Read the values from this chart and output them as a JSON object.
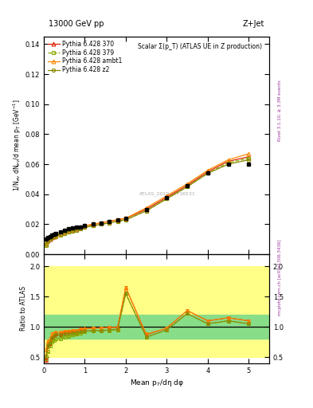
{
  "title_top": "13000 GeV pp",
  "title_right": "Z+Jet",
  "plot_title": "Scalar Σ(p_T) (ATLAS UE in Z production)",
  "xlabel": "Mean p$_T$/dη dφ",
  "ylabel_main": "1/N$_{ev}$ dN$_{ev}$/d mean p$_T$ [GeV$^{-1}$]",
  "ylabel_ratio": "Ratio to ATLAS",
  "right_label_main": "Rivet 3.1.10, ≥ 3.3M events",
  "right_label_ratio": "mcplots.cern.ch [arXiv:1306.3436]",
  "watermark": "ATLAS_2019_I1736531",
  "data_x": [
    0.05,
    0.1,
    0.15,
    0.2,
    0.25,
    0.3,
    0.4,
    0.5,
    0.6,
    0.7,
    0.8,
    0.9,
    1.0,
    1.2,
    1.4,
    1.6,
    1.8,
    2.0,
    2.5,
    3.0,
    3.5,
    4.0,
    4.5,
    5.0
  ],
  "data_y": [
    0.01,
    0.011,
    0.012,
    0.013,
    0.0135,
    0.014,
    0.015,
    0.016,
    0.017,
    0.0175,
    0.018,
    0.018,
    0.019,
    0.02,
    0.021,
    0.022,
    0.023,
    0.024,
    0.03,
    0.038,
    0.046,
    0.054,
    0.06,
    0.06
  ],
  "py370_y": [
    0.007,
    0.009,
    0.01,
    0.011,
    0.012,
    0.013,
    0.014,
    0.015,
    0.016,
    0.0165,
    0.017,
    0.018,
    0.019,
    0.02,
    0.021,
    0.022,
    0.023,
    0.024,
    0.03,
    0.038,
    0.046,
    0.055,
    0.062,
    0.065
  ],
  "py379_y": [
    0.006,
    0.009,
    0.01,
    0.011,
    0.0115,
    0.012,
    0.013,
    0.014,
    0.015,
    0.0155,
    0.016,
    0.017,
    0.018,
    0.019,
    0.02,
    0.021,
    0.022,
    0.023,
    0.029,
    0.037,
    0.045,
    0.054,
    0.061,
    0.064
  ],
  "pyambt1_y": [
    0.008,
    0.01,
    0.011,
    0.012,
    0.0125,
    0.013,
    0.014,
    0.015,
    0.016,
    0.0165,
    0.017,
    0.018,
    0.019,
    0.02,
    0.021,
    0.022,
    0.023,
    0.024,
    0.031,
    0.039,
    0.047,
    0.056,
    0.063,
    0.067
  ],
  "pyz2_y": [
    0.007,
    0.009,
    0.01,
    0.011,
    0.012,
    0.013,
    0.0135,
    0.014,
    0.015,
    0.0155,
    0.016,
    0.017,
    0.018,
    0.019,
    0.02,
    0.021,
    0.022,
    0.023,
    0.029,
    0.037,
    0.045,
    0.054,
    0.06,
    0.063
  ],
  "ratio_x": [
    0.05,
    0.1,
    0.15,
    0.2,
    0.25,
    0.3,
    0.4,
    0.5,
    0.6,
    0.7,
    0.8,
    0.9,
    1.0,
    1.2,
    1.4,
    1.6,
    1.8,
    2.0,
    2.5,
    3.0,
    3.5,
    4.0,
    4.5,
    5.0
  ],
  "ratio370": [
    0.45,
    0.68,
    0.73,
    0.82,
    0.86,
    0.88,
    0.88,
    0.91,
    0.92,
    0.93,
    0.94,
    0.95,
    0.97,
    0.98,
    0.98,
    0.99,
    0.99,
    1.65,
    0.87,
    0.98,
    1.27,
    1.1,
    1.15,
    1.1
  ],
  "ratio379": [
    0.48,
    0.6,
    0.68,
    0.75,
    0.78,
    0.8,
    0.8,
    0.83,
    0.85,
    0.87,
    0.89,
    0.9,
    0.92,
    0.93,
    0.93,
    0.94,
    0.95,
    1.55,
    0.83,
    0.95,
    1.22,
    1.05,
    1.1,
    1.05
  ],
  "ratioambt1": [
    0.62,
    0.77,
    0.8,
    0.88,
    0.9,
    0.91,
    0.91,
    0.92,
    0.93,
    0.94,
    0.94,
    0.96,
    0.97,
    0.98,
    0.98,
    0.99,
    0.99,
    1.65,
    0.88,
    0.98,
    1.27,
    1.1,
    1.15,
    1.1
  ],
  "ratioz2": [
    0.52,
    0.7,
    0.74,
    0.82,
    0.86,
    0.88,
    0.87,
    0.88,
    0.89,
    0.9,
    0.91,
    0.92,
    0.93,
    0.94,
    0.94,
    0.95,
    0.96,
    1.55,
    0.83,
    0.95,
    1.22,
    1.05,
    1.1,
    1.05
  ],
  "color_370": "#dd2200",
  "color_379": "#88aa00",
  "color_ambt1": "#ff8800",
  "color_z2": "#888800",
  "band_yellow_lo": 0.5,
  "band_yellow_hi": 2.0,
  "band_green_lo": 0.8,
  "band_green_hi": 1.2,
  "xlim": [
    0,
    5.5
  ],
  "ylim_main": [
    0.0,
    0.145
  ],
  "ylim_ratio": [
    0.4,
    2.2
  ],
  "yticks_main": [
    0.0,
    0.02,
    0.04,
    0.06,
    0.08,
    0.1,
    0.12,
    0.14
  ],
  "yticks_ratio": [
    0.5,
    1.0,
    1.5,
    2.0
  ],
  "xticks": [
    0,
    1,
    2,
    3,
    4,
    5
  ]
}
